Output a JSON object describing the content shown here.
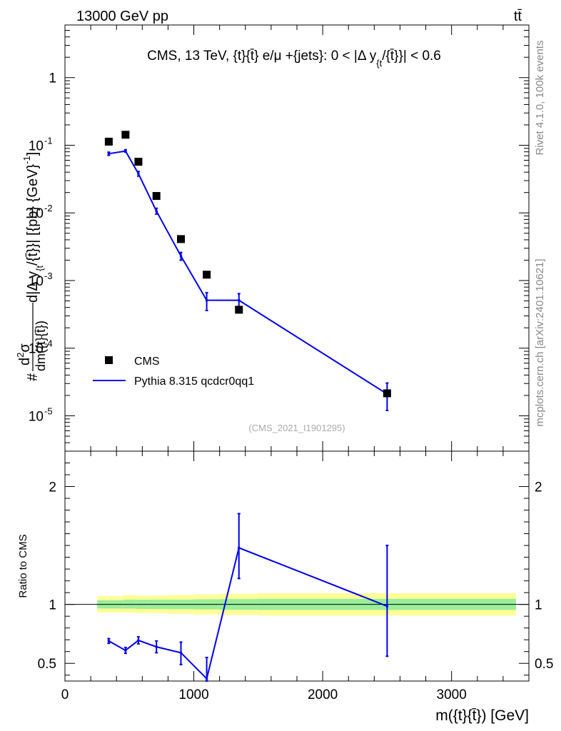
{
  "header": {
    "left": "13000 GeV pp",
    "right": "tt̄"
  },
  "side_labels": {
    "rivet": "Rivet 4.1.0,  100k events",
    "mcplots": "mcplots.cern.ch [arXiv:2401.10621]"
  },
  "chart_data": [
    {
      "type": "line",
      "title": "CMS, 13 TeV, {t}{t̄} e/μ +{jets}: 0 < |Δ y_{t}/{t̄}}| < 0.6",
      "title_parts": {
        "main": "CMS, 13 TeV, {t}{t̄} e/μ +{jets}: 0 < |Δ y",
        "sub": "{t",
        "rest": "/{t̄}}| < 0.6"
      },
      "ylabel": "#d²σ/dm({t}{t̄}) d|Δ y_{t}/{t̄}|} [{pb} {GeV}⁻¹]",
      "ylabel_parts": {
        "hash": "#",
        "num_d": "d",
        "num_sup": "2",
        "num_sigma": "σ",
        "den": "dm({t}{t̄})",
        "mid": " d|Δ y",
        "sub": "{t",
        "end": "/{t̄}}| [{pb} {GeV}",
        "exp": "-1",
        "close": "]"
      },
      "xlim": [
        0,
        3600
      ],
      "ylim_log": [
        3e-06,
        6
      ],
      "yscale": "log",
      "y_ticks": [
        {
          "value": 1,
          "label": "1"
        },
        {
          "value": 0.1,
          "base": "10",
          "exp": "-1"
        },
        {
          "value": 0.01,
          "base": "10",
          "exp": "-2"
        },
        {
          "value": 0.001,
          "base": "10",
          "exp": "-3"
        },
        {
          "value": 0.0001,
          "base": "10",
          "exp": "-4"
        },
        {
          "value": 1e-05,
          "base": "10",
          "exp": "-5"
        }
      ],
      "watermark": "(CMS_2021_I1901295)",
      "legend_position": "lower-left",
      "series": [
        {
          "name": "CMS",
          "style": "markers",
          "color": "#000000",
          "x": [
            340,
            470,
            570,
            710,
            900,
            1100,
            1350,
            2500
          ],
          "y": [
            0.113,
            0.143,
            0.057,
            0.0178,
            0.0041,
            0.00122,
            0.00037,
            2.15e-05
          ]
        },
        {
          "name": "Pythia 8.315 qcdcr0qq1",
          "style": "line",
          "color": "#0000ee",
          "x": [
            340,
            470,
            570,
            710,
            900,
            1100,
            1350,
            2500
          ],
          "y": [
            0.075,
            0.082,
            0.038,
            0.0106,
            0.0023,
            0.00051,
            0.00051,
            2.1e-05
          ],
          "err_lo": [
            0.071,
            0.079,
            0.035,
            0.0096,
            0.002,
            0.00036,
            0.0004,
            1.2e-05
          ],
          "err_hi": [
            0.079,
            0.086,
            0.041,
            0.0117,
            0.0026,
            0.00066,
            0.00064,
            3.05e-05
          ]
        }
      ]
    },
    {
      "type": "line",
      "ylabel": "Ratio to CMS",
      "xlabel": "m({t}{t̄}) [GeV]",
      "xlim": [
        0,
        3600
      ],
      "ylim": [
        0.35,
        2.3
      ],
      "x_ticks": [
        0,
        1000,
        2000,
        3000
      ],
      "x_tick_labels": [
        "0",
        "1000",
        "2000",
        "3000"
      ],
      "y_ticks": [
        0.5,
        1,
        2
      ],
      "y_tick_labels": [
        "0.5",
        "1",
        "2"
      ],
      "bands": {
        "edges": [
          250,
          450,
          550,
          650,
          800,
          1000,
          1200,
          1500,
          3500
        ],
        "yellow": [
          [
            0.93,
            1.07
          ],
          [
            0.93,
            1.08
          ],
          [
            0.925,
            1.075
          ],
          [
            0.925,
            1.075
          ],
          [
            0.92,
            1.08
          ],
          [
            0.915,
            1.085
          ],
          [
            0.91,
            1.09
          ],
          [
            0.905,
            1.095
          ]
        ],
        "green": [
          [
            0.965,
            1.035
          ],
          [
            0.965,
            1.04
          ],
          [
            0.962,
            1.04
          ],
          [
            0.962,
            1.04
          ],
          [
            0.96,
            1.04
          ],
          [
            0.958,
            1.043
          ],
          [
            0.955,
            1.045
          ],
          [
            0.953,
            1.047
          ]
        ],
        "yellow_color": "#ffff99",
        "green_color": "#99ee99"
      },
      "reference_line": 1,
      "series": [
        {
          "name": "Pythia 8.315 qcdcr0qq1",
          "color": "#0000ee",
          "x": [
            340,
            470,
            570,
            710,
            900,
            1100,
            1350,
            2500
          ],
          "y": [
            0.69,
            0.61,
            0.695,
            0.64,
            0.59,
            0.37,
            1.48,
            0.985
          ],
          "err_lo": [
            0.67,
            0.585,
            0.665,
            0.59,
            0.49,
            0.3,
            1.22,
            0.56
          ],
          "err_hi": [
            0.71,
            0.635,
            0.725,
            0.69,
            0.68,
            0.55,
            1.77,
            1.5
          ]
        }
      ]
    }
  ]
}
